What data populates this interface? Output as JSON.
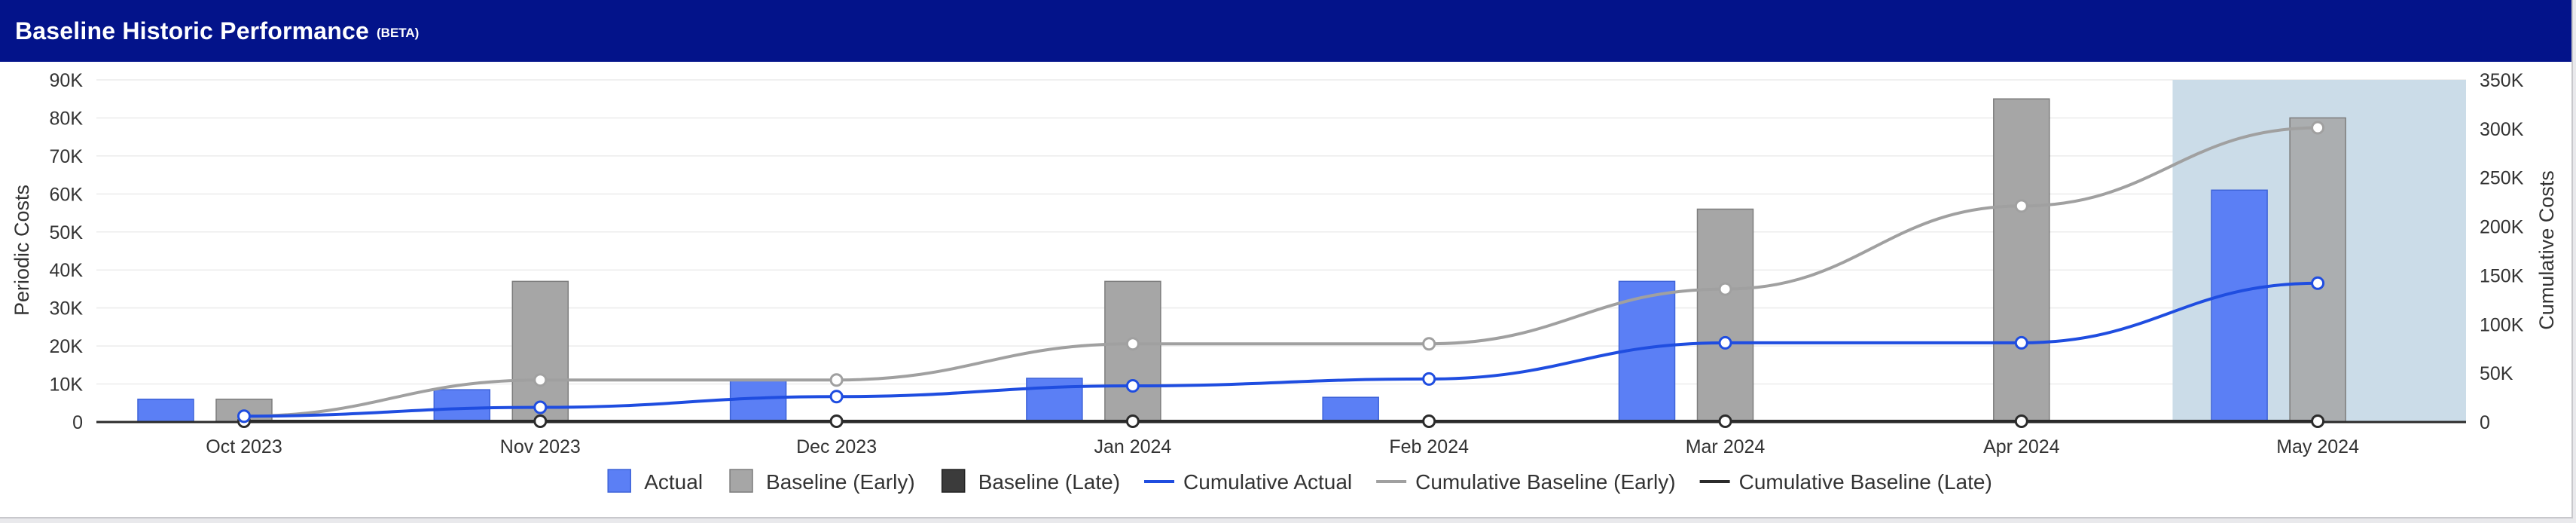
{
  "header": {
    "title": "Baseline Historic Performance",
    "badge": "(BETA)"
  },
  "colors": {
    "actual": "#5b7ff5",
    "baseline_early": "#a6a6a6",
    "baseline_late": "#3b3b3b",
    "cumulative_actual": "#1f4de0",
    "cumulative_early": "#a0a0a0",
    "cumulative_late": "#2b2b2b",
    "highlight": "#cbdce8",
    "grid": "#ececec"
  },
  "chart_data": {
    "type": "bar",
    "categories": [
      "Oct 2023",
      "Nov 2023",
      "Dec 2023",
      "Jan 2024",
      "Feb 2024",
      "Mar 2024",
      "Apr 2024",
      "May 2024"
    ],
    "highlighted_category": "May 2024",
    "ylabel": "Periodic Costs",
    "y2label": "Cumulative Costs",
    "ylim": [
      0,
      90000
    ],
    "y2lim": [
      0,
      350000
    ],
    "yticks": [
      "0",
      "10K",
      "20K",
      "30K",
      "40K",
      "50K",
      "60K",
      "70K",
      "80K",
      "90K"
    ],
    "y2ticks": [
      "0",
      "50K",
      "100K",
      "150K",
      "200K",
      "250K",
      "300K",
      "350K"
    ],
    "grid": true,
    "legend_position": "bottom",
    "series": [
      {
        "name": "Actual",
        "type": "bar",
        "values": [
          6000,
          8500,
          11000,
          11500,
          6500,
          37000,
          0,
          61000
        ]
      },
      {
        "name": "Baseline (Early)",
        "type": "bar",
        "values": [
          6000,
          37000,
          0,
          37000,
          0,
          56000,
          85000,
          80000
        ]
      },
      {
        "name": "Baseline (Late)",
        "type": "bar",
        "values": [
          0,
          0,
          0,
          0,
          0,
          0,
          0,
          0
        ]
      },
      {
        "name": "Cumulative Actual",
        "type": "line",
        "axis": "right",
        "values": [
          6000,
          15000,
          26000,
          37000,
          44000,
          81000,
          81000,
          142000
        ]
      },
      {
        "name": "Cumulative Baseline (Early)",
        "type": "line",
        "axis": "right",
        "values": [
          6000,
          43000,
          43000,
          80000,
          80000,
          136000,
          221000,
          301000
        ]
      },
      {
        "name": "Cumulative Baseline (Late)",
        "type": "line",
        "axis": "right",
        "values": [
          0,
          0,
          0,
          0,
          0,
          0,
          0,
          0
        ]
      }
    ]
  }
}
